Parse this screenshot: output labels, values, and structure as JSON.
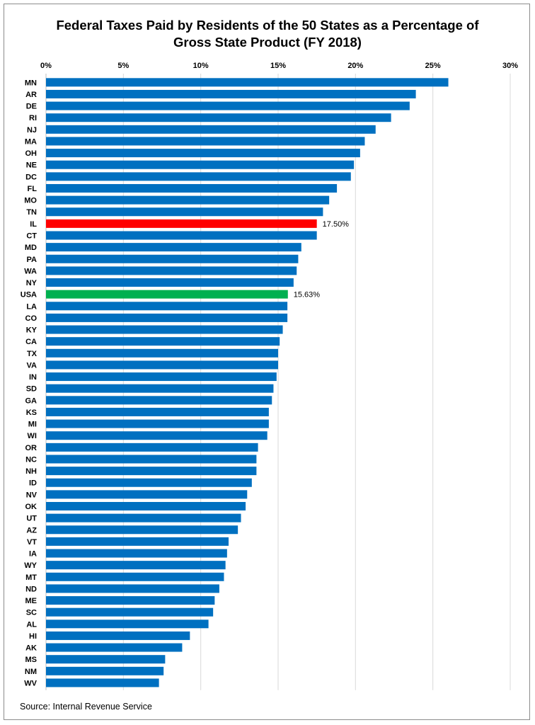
{
  "chart_data": {
    "type": "bar",
    "orientation": "horizontal",
    "title_lines": [
      "Federal Taxes Paid by Residents of the 50 States as a Percentage of",
      "Gross State Product (FY 2018)"
    ],
    "xlabel": "",
    "ylabel": "",
    "xlim": [
      0,
      30
    ],
    "x_ticks": [
      "0%",
      "5%",
      "10%",
      "15%",
      "20%",
      "25%",
      "30%"
    ],
    "axis_position": "top",
    "grid": true,
    "legend": "none",
    "categories": [
      "MN",
      "AR",
      "DE",
      "RI",
      "NJ",
      "MA",
      "OH",
      "NE",
      "DC",
      "FL",
      "MO",
      "TN",
      "IL",
      "CT",
      "MD",
      "PA",
      "WA",
      "NY",
      "USA",
      "LA",
      "CO",
      "KY",
      "CA",
      "TX",
      "VA",
      "IN",
      "SD",
      "GA",
      "KS",
      "MI",
      "WI",
      "OR",
      "NC",
      "NH",
      "ID",
      "NV",
      "OK",
      "UT",
      "AZ",
      "VT",
      "IA",
      "WY",
      "MT",
      "ND",
      "ME",
      "SC",
      "AL",
      "HI",
      "AK",
      "MS",
      "NM",
      "WV"
    ],
    "values": [
      26.0,
      23.9,
      23.5,
      22.3,
      21.3,
      20.6,
      20.3,
      19.9,
      19.7,
      18.8,
      18.3,
      17.9,
      17.5,
      17.5,
      16.5,
      16.3,
      16.2,
      16.0,
      15.63,
      15.6,
      15.6,
      15.3,
      15.1,
      15.0,
      15.0,
      14.9,
      14.7,
      14.6,
      14.4,
      14.4,
      14.3,
      13.7,
      13.6,
      13.6,
      13.3,
      13.0,
      12.9,
      12.6,
      12.4,
      11.8,
      11.7,
      11.6,
      11.5,
      11.2,
      10.9,
      10.8,
      10.5,
      9.3,
      8.8,
      7.7,
      7.6,
      7.3
    ],
    "highlights": [
      {
        "category": "IL",
        "color": "#ff0000",
        "label": "17.50%"
      },
      {
        "category": "USA",
        "color": "#00b050",
        "label": "15.63%"
      }
    ],
    "colors": {
      "default_bar": "#0070c0",
      "grid": "#d9d9d9"
    }
  },
  "source": "Source: Internal Revenue Service"
}
